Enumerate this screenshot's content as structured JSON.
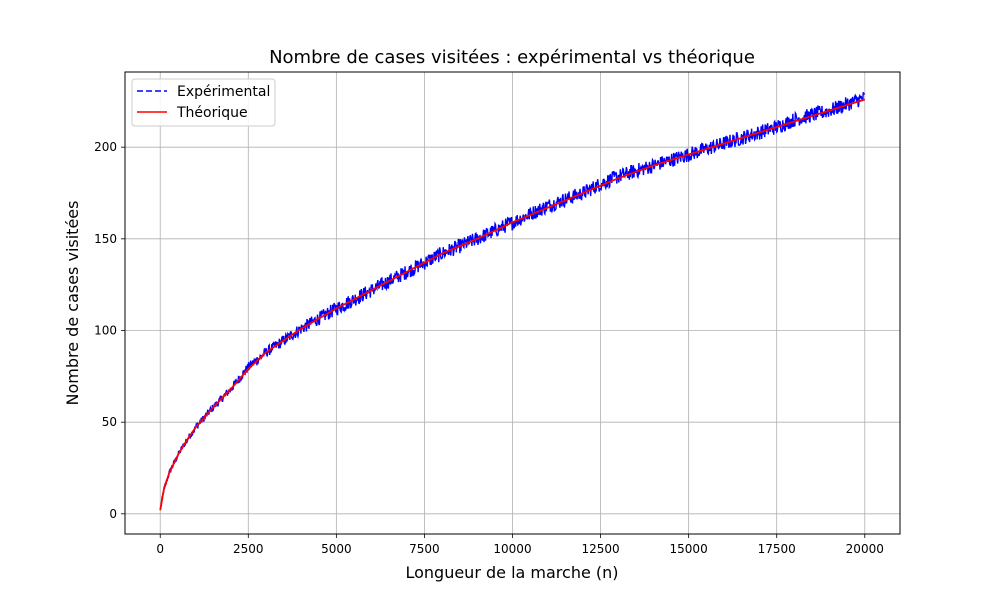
{
  "chart_data": {
    "type": "line",
    "title": "Nombre de cases visitées : expérimental vs théorique",
    "xlabel": "Longueur de la marche (n)",
    "ylabel": "Nombre de cases visitées",
    "xlim": [
      -1000,
      21000
    ],
    "ylim": [
      -11,
      241
    ],
    "xticks": [
      0,
      2500,
      5000,
      7500,
      10000,
      12500,
      15000,
      17500,
      20000
    ],
    "yticks": [
      0,
      50,
      100,
      150,
      200
    ],
    "grid": true,
    "legend": "top-left",
    "series": [
      {
        "name": "Expérimental",
        "style": "dashed",
        "color": "#0000ff",
        "noise_band": 4,
        "x": [
          0,
          100,
          250,
          500,
          750,
          1000,
          1500,
          2000,
          2500,
          3000,
          4000,
          5000,
          6000,
          7000,
          7500,
          8000,
          9000,
          10000,
          11000,
          12000,
          12500,
          13000,
          14000,
          15000,
          16000,
          17000,
          17500,
          18000,
          19000,
          20000
        ],
        "y": [
          2,
          13,
          22,
          32,
          40,
          47,
          58,
          68,
          80,
          88,
          101,
          112,
          122,
          132,
          137,
          142,
          150,
          159,
          168,
          175,
          180,
          184,
          190,
          196,
          202,
          208,
          211,
          215,
          220,
          227
        ]
      },
      {
        "name": "Théorique",
        "style": "solid",
        "color": "#ff0000",
        "x": [
          0,
          100,
          250,
          500,
          750,
          1000,
          1500,
          2000,
          2500,
          3000,
          4000,
          5000,
          6000,
          7000,
          7500,
          8000,
          9000,
          10000,
          11000,
          12000,
          12500,
          13000,
          14000,
          15000,
          16000,
          17000,
          17500,
          18000,
          19000,
          20000
        ],
        "y": [
          2,
          13,
          22,
          32,
          40,
          47,
          58,
          68,
          79,
          88,
          101,
          112,
          122,
          132,
          137,
          142,
          150,
          159,
          167,
          175,
          179,
          183,
          190,
          196,
          202,
          208,
          211,
          214,
          220,
          226
        ]
      }
    ]
  }
}
